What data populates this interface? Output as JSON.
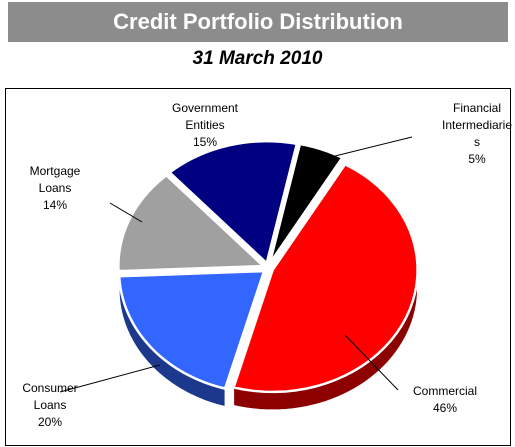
{
  "chart_data": {
    "type": "pie",
    "title": "Credit Portfolio Distribution",
    "subtitle": "31 March 2010",
    "categories": [
      "Financial Intermediaries",
      "Commercial",
      "Consumer Loans",
      "Mortgage Loans",
      "Government Entities"
    ],
    "values": [
      5,
      46,
      20,
      14,
      15
    ],
    "value_labels": [
      "5%",
      "46%",
      "20%",
      "14%",
      "15%"
    ],
    "colors": [
      "#000000",
      "#ff0000",
      "#3366ff",
      "#a0a0a0",
      "#000080"
    ]
  }
}
